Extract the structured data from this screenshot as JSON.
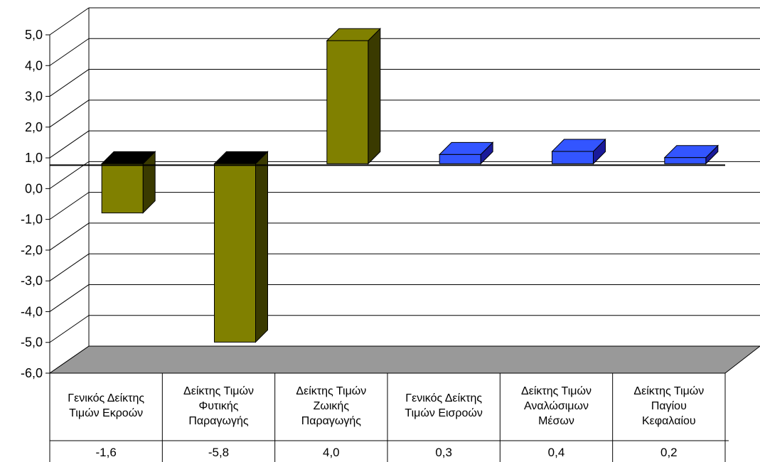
{
  "chart_data": {
    "type": "bar",
    "categories": [
      [
        "Γενικός Δείκτης",
        "Τιμών Εκροών"
      ],
      [
        "Δείκτης Τιμών",
        "Φυτικής",
        "Παραγωγής"
      ],
      [
        "Δείκτης Τιμών",
        "Ζωικής",
        "Παραγωγής"
      ],
      [
        "Γενικός Δείκτης",
        "Τιμών Εισροών"
      ],
      [
        "Δείκτης Τιμών",
        "Αναλώσιμων",
        "Μέσων"
      ],
      [
        "Δείκτης Τιμών",
        "Παγίου",
        "Κεφαλαίου"
      ]
    ],
    "values": [
      -1.6,
      -5.8,
      4.0,
      0.3,
      0.4,
      0.2
    ],
    "value_labels": [
      "-1,6",
      "-5,8",
      "4,0",
      "0,3",
      "0,4",
      "0,2"
    ],
    "yticks": [
      "5,0",
      "4,0",
      "3,0",
      "2,0",
      "1,0",
      "0,0",
      "-1,0",
      "-2,0",
      "-3,0",
      "-4,0",
      "-5,0",
      "-6,0"
    ],
    "ylim": [
      -6,
      5
    ],
    "grid": true,
    "style": "3d",
    "bar_colors": [
      "#808000",
      "#808000",
      "#808000",
      "#3355ff",
      "#3355ff",
      "#3355ff"
    ],
    "bar_side_colors": [
      "#3a3a00",
      "#3a3a00",
      "#3a3a00",
      "#1a1a9a",
      "#1a1a9a",
      "#1a1a9a"
    ],
    "floor_color": "#999999",
    "title": "",
    "xlabel": "",
    "ylabel": ""
  }
}
